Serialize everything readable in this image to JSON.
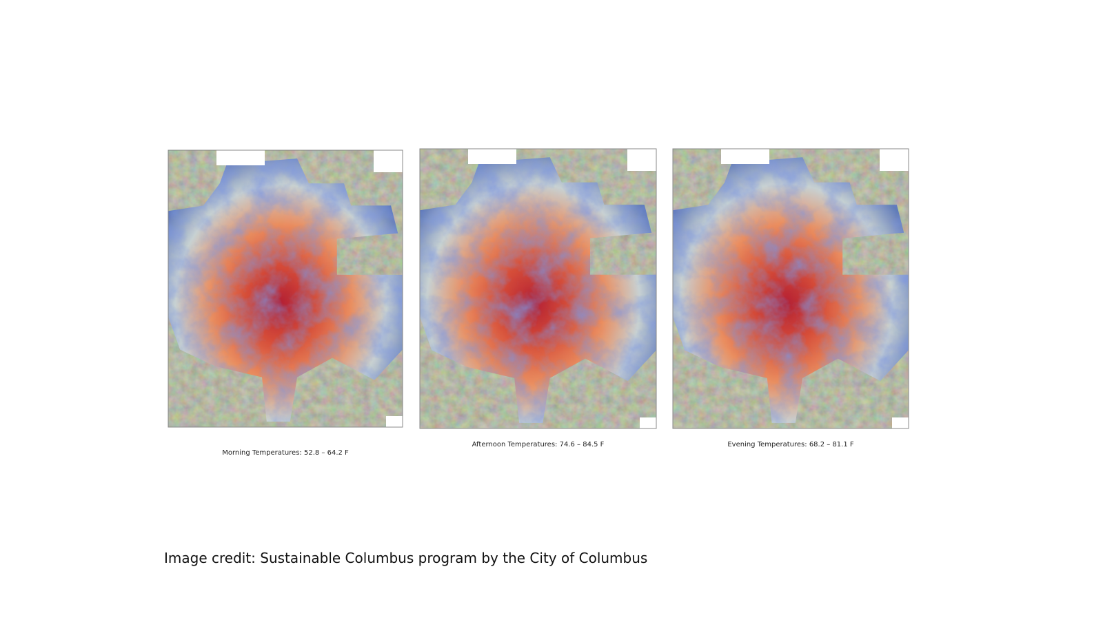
{
  "panels": [
    {
      "caption": "Morning Temperatures: 52.8 – 64.2 F"
    },
    {
      "caption": "Afternoon Temperatures: 74.6 – 84.5 F"
    },
    {
      "caption": "Evening Temperatures: 68.2 – 81.1 F"
    }
  ],
  "credit": "Image credit: Sustainable Columbus program by the City of Columbus"
}
